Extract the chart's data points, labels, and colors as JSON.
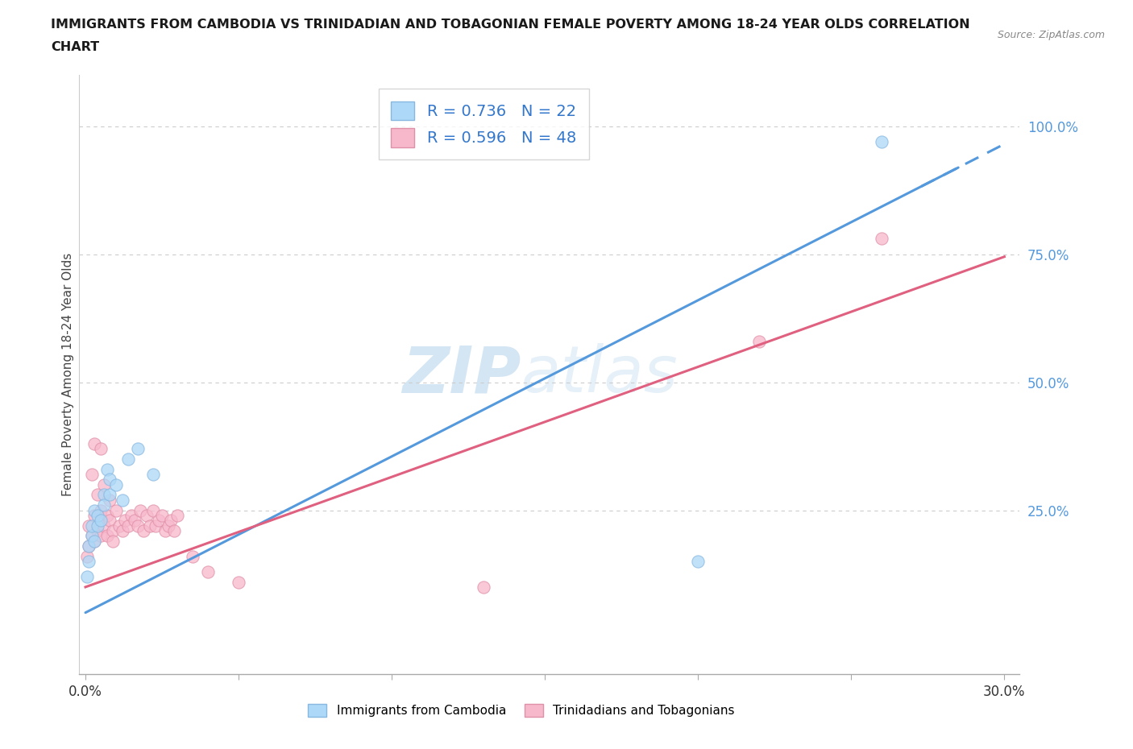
{
  "title_line1": "IMMIGRANTS FROM CAMBODIA VS TRINIDADIAN AND TOBAGONIAN FEMALE POVERTY AMONG 18-24 YEAR OLDS CORRELATION",
  "title_line2": "CHART",
  "source": "Source: ZipAtlas.com",
  "ylabel": "Female Poverty Among 18-24 Year Olds",
  "ytick_labels": [
    "25.0%",
    "50.0%",
    "75.0%",
    "100.0%"
  ],
  "ytick_values": [
    0.25,
    0.5,
    0.75,
    1.0
  ],
  "xlim": [
    -0.002,
    0.305
  ],
  "ylim": [
    -0.07,
    1.1
  ],
  "legend_label1": "R = 0.736   N = 22",
  "legend_label2": "R = 0.596   N = 48",
  "color_cambodia": "#add8f7",
  "color_trinidadian": "#f7b8cc",
  "line_color_cambodia": "#5599dd",
  "line_color_trinidadian": "#e06080",
  "watermark_zip": "ZIP",
  "watermark_atlas": "atlas",
  "cam_slope": 3.05,
  "cam_intercept": 0.05,
  "tri_slope": 2.15,
  "tri_intercept": 0.1,
  "cambodia_x": [
    0.0005,
    0.001,
    0.001,
    0.002,
    0.002,
    0.003,
    0.003,
    0.004,
    0.004,
    0.005,
    0.006,
    0.006,
    0.007,
    0.008,
    0.008,
    0.01,
    0.012,
    0.014,
    0.017,
    0.022,
    0.2,
    0.26
  ],
  "cambodia_y": [
    0.12,
    0.15,
    0.18,
    0.2,
    0.22,
    0.19,
    0.25,
    0.22,
    0.24,
    0.23,
    0.28,
    0.26,
    0.33,
    0.31,
    0.28,
    0.3,
    0.27,
    0.35,
    0.37,
    0.32,
    0.15,
    0.97
  ],
  "trinidadian_x": [
    0.0005,
    0.001,
    0.001,
    0.002,
    0.002,
    0.003,
    0.003,
    0.003,
    0.004,
    0.004,
    0.005,
    0.005,
    0.005,
    0.006,
    0.006,
    0.007,
    0.007,
    0.008,
    0.008,
    0.009,
    0.009,
    0.01,
    0.011,
    0.012,
    0.013,
    0.014,
    0.015,
    0.016,
    0.017,
    0.018,
    0.019,
    0.02,
    0.021,
    0.022,
    0.023,
    0.024,
    0.025,
    0.026,
    0.027,
    0.028,
    0.029,
    0.03,
    0.035,
    0.04,
    0.05,
    0.13,
    0.22,
    0.26
  ],
  "trinidadian_y": [
    0.16,
    0.18,
    0.22,
    0.2,
    0.32,
    0.19,
    0.24,
    0.38,
    0.21,
    0.28,
    0.2,
    0.25,
    0.37,
    0.22,
    0.3,
    0.24,
    0.2,
    0.23,
    0.27,
    0.21,
    0.19,
    0.25,
    0.22,
    0.21,
    0.23,
    0.22,
    0.24,
    0.23,
    0.22,
    0.25,
    0.21,
    0.24,
    0.22,
    0.25,
    0.22,
    0.23,
    0.24,
    0.21,
    0.22,
    0.23,
    0.21,
    0.24,
    0.16,
    0.13,
    0.11,
    0.1,
    0.58,
    0.78
  ],
  "xtick_positions": [
    0.0,
    0.05,
    0.1,
    0.15,
    0.2,
    0.25,
    0.3
  ]
}
